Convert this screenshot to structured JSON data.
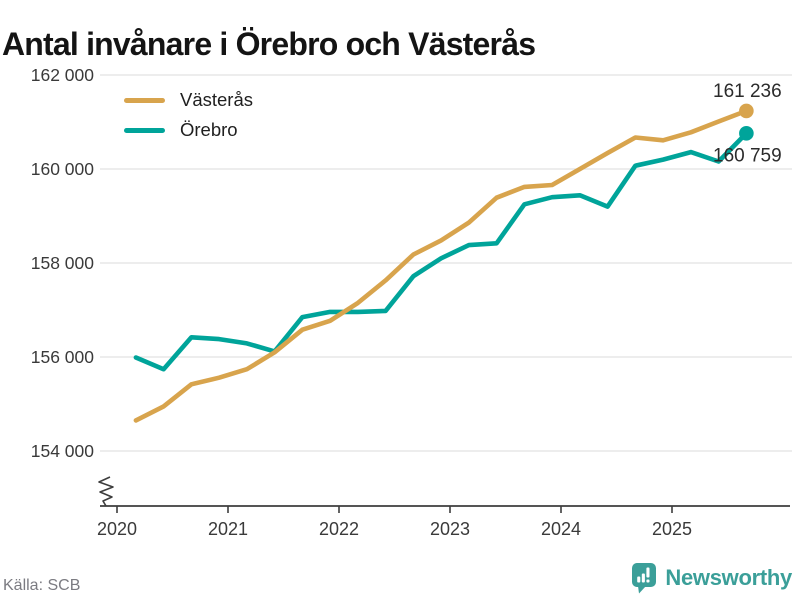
{
  "title": "Antal invånare i Örebro och Västerås",
  "source": "Källa: SCB",
  "brand": {
    "name": "Newsworthy"
  },
  "colors": {
    "vasteras": "#d8a44d",
    "orebro": "#00a49a",
    "grid": "#e2e2e2",
    "axis": "#3d3d3d",
    "tick_text": "#3a3a3a",
    "value_text": "#2b2b2b",
    "legend_text": "#1f1f1f",
    "muted_text": "#7b7b81",
    "brand_teal": "#3b9f99",
    "background": "#ffffff"
  },
  "chart_data": {
    "type": "line",
    "title": "Antal invånare i Örebro och Västerås",
    "xlabel": "",
    "ylabel": "",
    "grid": true,
    "legend_position": "top-left",
    "axis_break": true,
    "xlim": [
      2019.85,
      2026.05
    ],
    "ylim": [
      152830,
      162320
    ],
    "x": [
      2020.17,
      2020.42,
      2020.67,
      2020.92,
      2021.17,
      2021.42,
      2021.67,
      2021.92,
      2022.17,
      2022.42,
      2022.67,
      2022.92,
      2023.17,
      2023.42,
      2023.67,
      2023.92,
      2024.17,
      2024.42,
      2024.67,
      2024.92,
      2025.17,
      2025.42,
      2025.67
    ],
    "series": [
      {
        "key": "vasteras",
        "name": "Västerås",
        "color_key": "vasteras",
        "end_label": "161 236",
        "values": [
          154650,
          154950,
          155420,
          155560,
          155740,
          156100,
          156580,
          156770,
          157150,
          157630,
          158180,
          158480,
          158860,
          159390,
          159620,
          159660,
          160000,
          160340,
          160670,
          160610,
          160780,
          161010,
          161236
        ]
      },
      {
        "key": "orebro",
        "name": "Örebro",
        "color_key": "orebro",
        "end_label": "160 759",
        "values": [
          155990,
          155740,
          156420,
          156380,
          156290,
          156120,
          156850,
          156960,
          156960,
          156980,
          157720,
          158100,
          158380,
          158420,
          159250,
          159400,
          159440,
          159200,
          160070,
          160200,
          160360,
          160160,
          160759
        ]
      }
    ],
    "yticks": [
      {
        "value": 162000,
        "label": "162 000"
      },
      {
        "value": 160000,
        "label": "160 000"
      },
      {
        "value": 158000,
        "label": "158 000"
      },
      {
        "value": 156000,
        "label": "156 000"
      },
      {
        "value": 154000,
        "label": "154 000"
      }
    ],
    "xticks": [
      {
        "value": 2020,
        "label": "2020"
      },
      {
        "value": 2021,
        "label": "2021"
      },
      {
        "value": 2022,
        "label": "2022"
      },
      {
        "value": 2023,
        "label": "2023"
      },
      {
        "value": 2024,
        "label": "2024"
      },
      {
        "value": 2025,
        "label": "2025"
      }
    ]
  }
}
